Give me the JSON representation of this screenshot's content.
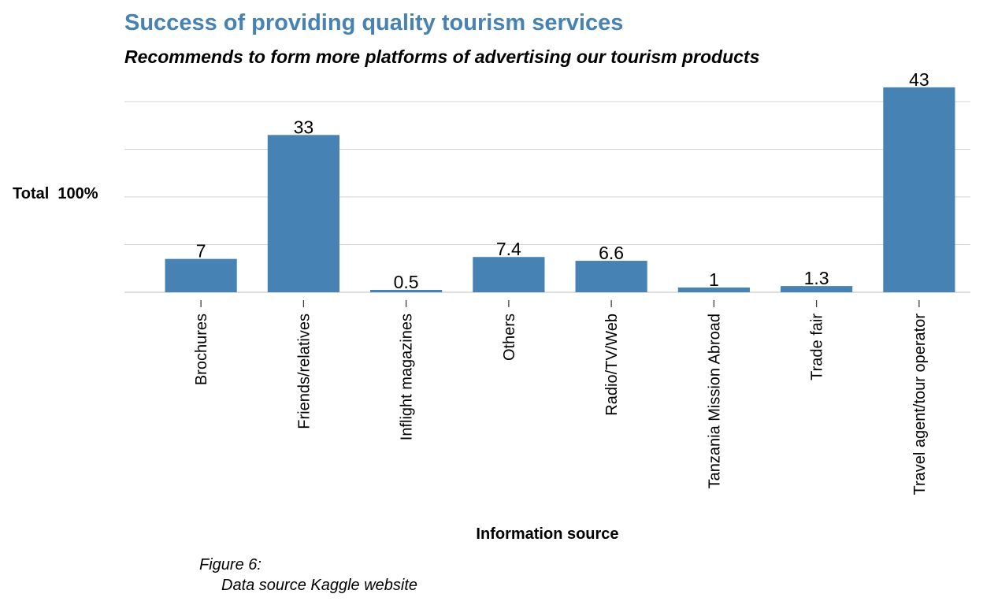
{
  "chart_data": {
    "type": "bar",
    "title": "Success of providing quality tourism services",
    "subtitle": "Recommends to form more platforms of advertising our tourism products",
    "xlabel": "Information source",
    "ylabel": "Total  100%",
    "categories": [
      "Brochures",
      "Friends/relatives",
      "Inflight magazines",
      "Others",
      "Radio/TV/Web",
      "Tanzania Mission Abroad",
      "Trade fair",
      "Travel agent/tour operator"
    ],
    "values": [
      7,
      33,
      0.5,
      7.4,
      6.6,
      1,
      1.3,
      43
    ],
    "data_labels": [
      "7",
      "33",
      "0.5",
      "7.4",
      "6.6",
      "1",
      "1.3",
      "43"
    ],
    "ylim": [
      0,
      40
    ],
    "grid": true,
    "colors": {
      "bar": "#4682b4",
      "title": "#4682b4",
      "grid": "#d3d3d3"
    }
  },
  "caption": {
    "figure": "Figure 6:",
    "source": "Data source Kaggle website"
  }
}
